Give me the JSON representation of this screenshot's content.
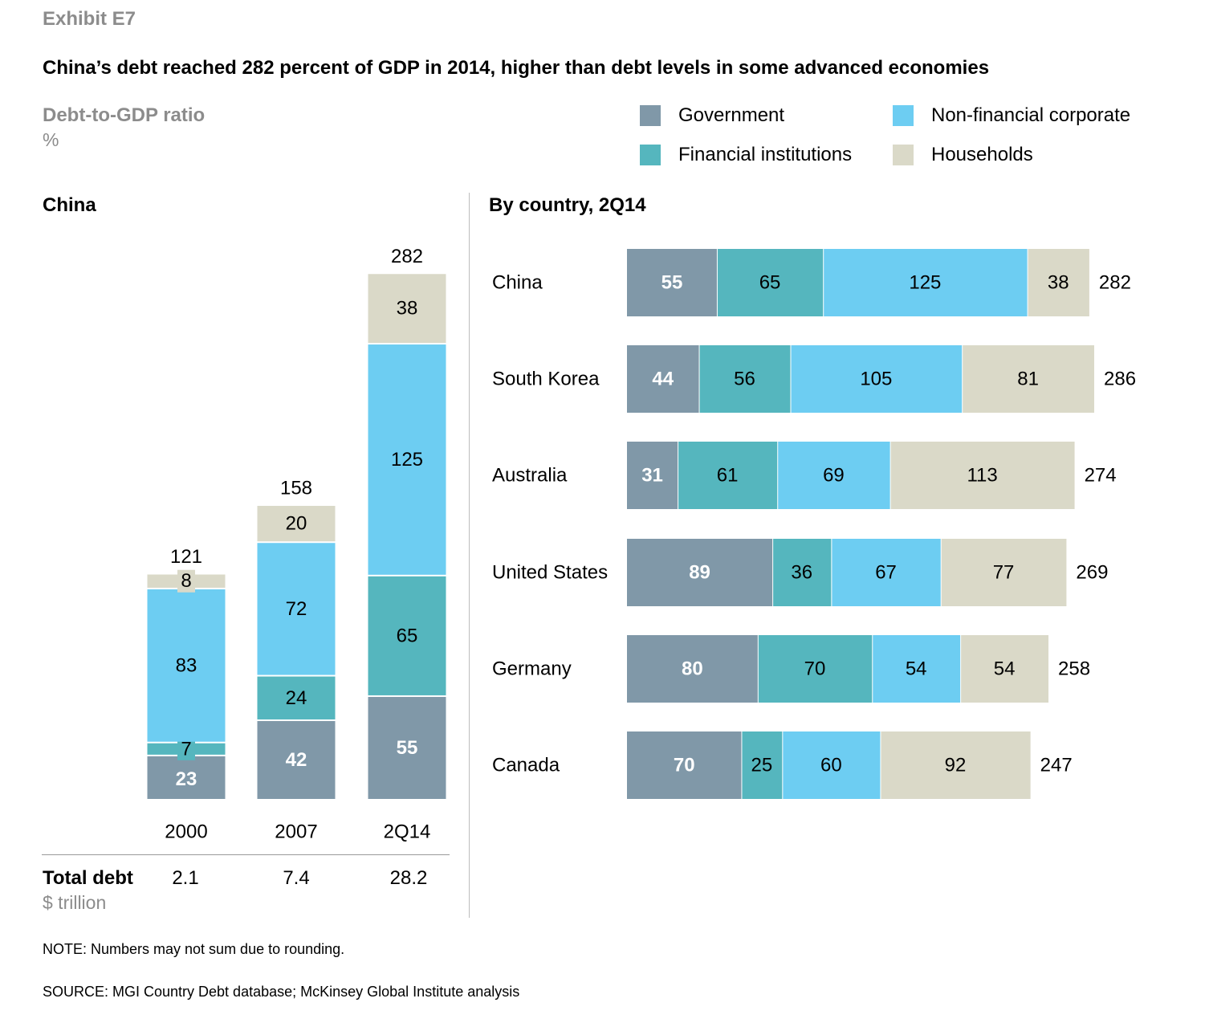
{
  "exhibit": "Exhibit E7",
  "title": "China’s debt reached 282 percent of GDP in 2014, higher than debt levels in some advanced economies",
  "ylabel": "Debt-to-GDP ratio",
  "yunit": "%",
  "colors": {
    "Government": "#8098a8",
    "Financial institutions": "#55b6be",
    "Non-financial corporate": "#6dcdf2",
    "Households": "#dad9c8"
  },
  "legend": [
    {
      "label": "Government"
    },
    {
      "label": "Non-financial corporate"
    },
    {
      "label": "Financial institutions"
    },
    {
      "label": "Households"
    }
  ],
  "china_panel_title": "China",
  "country_panel_title": "By country, 2Q14",
  "total_debt": {
    "label": "Total debt",
    "unit": "$ trillion",
    "values": [
      "2.1",
      "7.4",
      "28.2"
    ]
  },
  "note": "NOTE: Numbers may not sum due to rounding.",
  "source": "SOURCE:  MGI Country Debt database; McKinsey Global Institute analysis",
  "chart_data": [
    {
      "type": "bar",
      "orientation": "vertical",
      "stacked": true,
      "title": "China",
      "categories": [
        "2000",
        "2007",
        "2Q14"
      ],
      "series": [
        {
          "name": "Government",
          "values": [
            23,
            42,
            55
          ]
        },
        {
          "name": "Financial institutions",
          "values": [
            7,
            24,
            65
          ]
        },
        {
          "name": "Non-financial corporate",
          "values": [
            83,
            72,
            125
          ]
        },
        {
          "name": "Households",
          "values": [
            8,
            20,
            38
          ]
        }
      ],
      "totals": [
        121,
        158,
        282
      ],
      "ylabel": "Debt-to-GDP ratio (%)",
      "ylim": [
        0,
        300
      ]
    },
    {
      "type": "bar",
      "orientation": "horizontal",
      "stacked": true,
      "title": "By country, 2Q14",
      "categories": [
        "China",
        "South Korea",
        "Australia",
        "United States",
        "Germany",
        "Canada"
      ],
      "series": [
        {
          "name": "Government",
          "values": [
            55,
            44,
            31,
            89,
            80,
            70
          ]
        },
        {
          "name": "Financial institutions",
          "values": [
            65,
            56,
            61,
            36,
            70,
            25
          ]
        },
        {
          "name": "Non-financial corporate",
          "values": [
            125,
            105,
            69,
            67,
            54,
            60
          ]
        },
        {
          "name": "Households",
          "values": [
            38,
            81,
            113,
            77,
            54,
            92
          ]
        }
      ],
      "totals": [
        282,
        286,
        274,
        269,
        258,
        247
      ]
    }
  ]
}
